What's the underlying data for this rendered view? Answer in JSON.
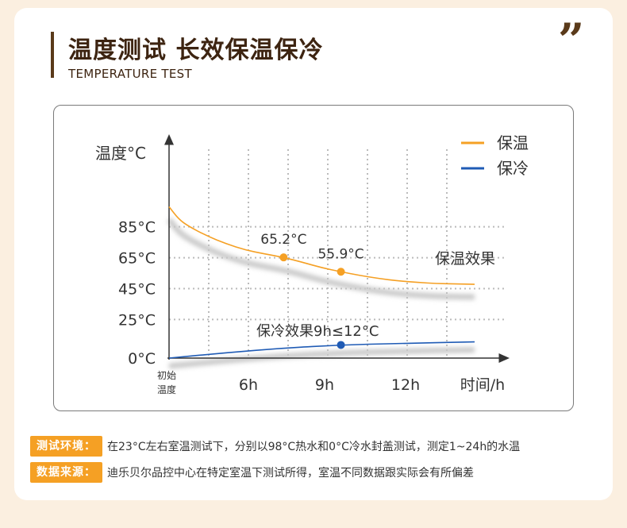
{
  "header": {
    "title": "温度测试 长效保温保冷",
    "subtitle": "TEMPERATURE TEST",
    "quote_mark": "”"
  },
  "info": [
    {
      "tag": "测试环境：",
      "text": "在23°C左右室温测试下，分别以98°C热水和0°C冷水封盖测试，测定1~24h的水温"
    },
    {
      "tag": "数据来源：",
      "text": "迪乐贝尔品控中心在特定室温下测试所得，室温不同数据跟实际会有所偏差"
    }
  ],
  "colors": {
    "warm": "#f5a024",
    "cold": "#1f5bb5",
    "accent_bg": "#fbefe0",
    "title": "#3d2411"
  },
  "chart_data": {
    "type": "line",
    "ylabel": "温度°C",
    "xlabel": "时间/h",
    "x_origin_label_line1": "初始",
    "x_origin_label_line2": "温度",
    "xticks": [
      {
        "value": 6,
        "label": "6h"
      },
      {
        "value": 9,
        "label": "9h"
      },
      {
        "value": 12,
        "label": "12h"
      }
    ],
    "yticks": [
      {
        "value": 0,
        "label": "0°C"
      },
      {
        "value": 25,
        "label": "25°C"
      },
      {
        "value": 45,
        "label": "45°C"
      },
      {
        "value": 65,
        "label": "65°C"
      },
      {
        "value": 85,
        "label": "85°C"
      }
    ],
    "ylim": [
      0,
      110
    ],
    "xlim": [
      0,
      16
    ],
    "grid": true,
    "legend_position": "top-right",
    "series": [
      {
        "name": "保温",
        "color": "#f5a024",
        "x": [
          0,
          0.5,
          1,
          2,
          3,
          4,
          5,
          6,
          7,
          8,
          9,
          10,
          11,
          12,
          13,
          14,
          15,
          16
        ],
        "y": [
          98,
          90,
          85.5,
          79,
          74,
          70,
          67.5,
          65.2,
          62,
          58.5,
          55.9,
          53.5,
          51.5,
          50,
          49,
          48.3,
          48,
          47.8
        ]
      },
      {
        "name": "保冷",
        "color": "#1f5bb5",
        "x": [
          0,
          3,
          6,
          9,
          12,
          16
        ],
        "y": [
          0,
          3.5,
          6.5,
          8.5,
          9.5,
          10.5
        ]
      }
    ],
    "markers": [
      {
        "series": 0,
        "x": 6,
        "y": 65.2,
        "label": "65.2°C"
      },
      {
        "series": 0,
        "x": 9,
        "y": 55.9,
        "label": "55.9°C"
      },
      {
        "series": 1,
        "x": 9,
        "y": 8.5,
        "label": ""
      }
    ],
    "annotations": [
      {
        "text": "保温效果",
        "x": 16,
        "y": 47.8
      },
      {
        "text": "保冷效果9h≤12°C",
        "x": 9,
        "y": 8.5
      }
    ]
  }
}
